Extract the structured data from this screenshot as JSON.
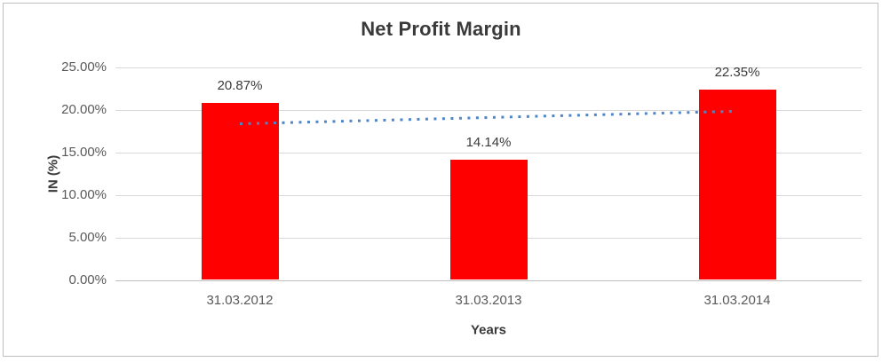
{
  "chart_data": {
    "type": "bar",
    "title": "Net Profit Margin",
    "xlabel": "Years",
    "ylabel": "IN (%)",
    "categories": [
      "31.03.2012",
      "31.03.2013",
      "31.03.2014"
    ],
    "values": [
      20.87,
      14.14,
      22.35
    ],
    "data_labels": [
      "20.87%",
      "14.14%",
      "22.35%"
    ],
    "ylim": [
      0,
      25
    ],
    "ytick_step": 5,
    "ytick_labels": [
      "0.00%",
      "5.00%",
      "10.00%",
      "15.00%",
      "20.00%",
      "25.00%"
    ],
    "grid": true,
    "legend": "none",
    "bar_color": "#ff0000",
    "gridline_color": "#d9d9d9",
    "frame_border_color": "#bfbfbf",
    "trendline": {
      "type": "linear",
      "style": "dotted",
      "color": "#4e86c8",
      "start_value": 18.38,
      "end_value": 19.86
    }
  }
}
